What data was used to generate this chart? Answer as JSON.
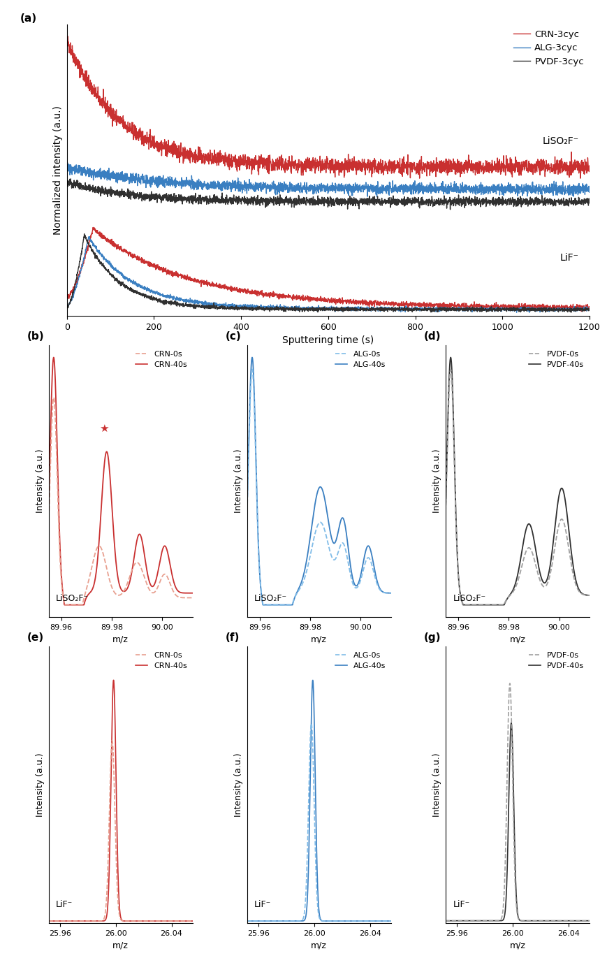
{
  "panel_a": {
    "xlabel": "Sputtering time (s)",
    "ylabel": "Normalized intensity (a.u.)",
    "xlim": [
      0,
      1200
    ],
    "legend": [
      "CRN-3cyc",
      "ALG-3cyc",
      "PVDF-3cyc"
    ],
    "label_LiSO2F": "LiSO₂F⁻",
    "label_LiF": "LiF⁻"
  },
  "panel_bcd": {
    "xlabel": "m/z",
    "ylabel": "Intensity (a.u.)",
    "xlim_lo": 89.955,
    "xlim_hi": 90.012,
    "xticks": [
      89.96,
      89.98,
      90.0
    ],
    "xticklabels": [
      "89.96",
      "89.98",
      "90.00"
    ],
    "label": "LiSO₂F⁻"
  },
  "panel_efg": {
    "xlabel": "m/z",
    "ylabel": "Intensity (a.u.)",
    "xlim_lo": 25.952,
    "xlim_hi": 26.055,
    "xticks": [
      25.96,
      26.0,
      26.04
    ],
    "xticklabels": [
      "25.96",
      "26.00",
      "26.04"
    ],
    "label": "LiF⁻"
  },
  "colors": {
    "crn_solid": "#c93030",
    "crn_dashed": "#e8a090",
    "alg_solid": "#3a7fc1",
    "alg_dashed": "#80bce8",
    "pvdf_solid": "#303030",
    "pvdf_dashed": "#a0a0a0"
  }
}
